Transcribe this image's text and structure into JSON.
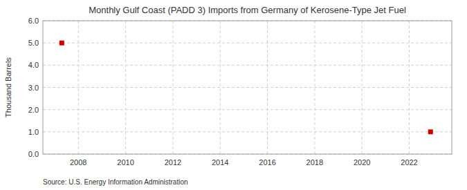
{
  "chart_data": {
    "type": "scatter",
    "title": "Monthly Gulf Coast (PADD 3) Imports from Germany of Kerosene-Type Jet Fuel",
    "ylabel": "Thousand Barrels",
    "source": "Source: U.S. Energy Information Administration",
    "x": [
      2007.3,
      2022.9
    ],
    "values": [
      5.0,
      1.0
    ],
    "color": "#cc0000",
    "marker": "square",
    "xlim": [
      2006.5,
      2023.8
    ],
    "ylim": [
      0.0,
      6.0
    ],
    "xticks": [
      2008,
      2010,
      2012,
      2014,
      2016,
      2018,
      2020,
      2022
    ],
    "yticks": [
      {
        "value": 0.0,
        "label": "0.0"
      },
      {
        "value": 1.0,
        "label": "1.0"
      },
      {
        "value": 2.0,
        "label": "2.0"
      },
      {
        "value": 3.0,
        "label": "3.0"
      },
      {
        "value": 4.0,
        "label": "4.0"
      },
      {
        "value": 5.0,
        "label": "5.0"
      },
      {
        "value": 6.0,
        "label": "6.0"
      }
    ],
    "grid": true
  }
}
